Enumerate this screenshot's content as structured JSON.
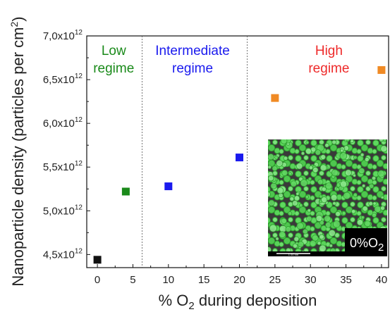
{
  "chart_data": {
    "type": "scatter",
    "xlabel_prefix": "% O",
    "xlabel_sub": "2",
    "xlabel_suffix": " during deposition",
    "ylabel": "Nanoparticle density (particles per cm",
    "ylabel_sup": "2",
    "ylabel_close": ")",
    "xlim": [
      -1.5,
      41
    ],
    "ylim": [
      4.35,
      7.0
    ],
    "xticks": [
      0,
      5,
      10,
      15,
      20,
      25,
      30,
      35,
      40
    ],
    "yticks": [
      {
        "value": 4.5,
        "mantissa": "4,5x10",
        "exp": "12"
      },
      {
        "value": 5.0,
        "mantissa": "5,0x10",
        "exp": "12"
      },
      {
        "value": 5.5,
        "mantissa": "5,5x10",
        "exp": "12"
      },
      {
        "value": 6.0,
        "mantissa": "6,0x10",
        "exp": "12"
      },
      {
        "value": 6.5,
        "mantissa": "6,5x10",
        "exp": "12"
      },
      {
        "value": 7.0,
        "mantissa": "7,0x10",
        "exp": "12"
      }
    ],
    "y_unit_multiplier": "1e12",
    "points": [
      {
        "x": 0,
        "y": 4.44,
        "color": "#111111"
      },
      {
        "x": 4,
        "y": 5.22,
        "color": "#1a8a1a"
      },
      {
        "x": 10,
        "y": 5.28,
        "color": "#1a1aee"
      },
      {
        "x": 20,
        "y": 5.61,
        "color": "#1a1aee"
      },
      {
        "x": 25,
        "y": 6.29,
        "color": "#f08a24"
      },
      {
        "x": 40,
        "y": 6.61,
        "color": "#f08a24"
      }
    ],
    "dividers_x": [
      6.3,
      21.1
    ],
    "regimes": [
      {
        "line1": "Low",
        "line2": "regime",
        "color": "#1a8a1a",
        "x": 2.3
      },
      {
        "line1": "Intermediate",
        "line2": "regime",
        "color": "#1a1aee",
        "x": 13.4
      },
      {
        "line1": "High",
        "line2": "regime",
        "color": "#ee2a2a",
        "x": 32.6
      }
    ]
  },
  "inset": {
    "label_prefix": "0%O",
    "label_sub": "2",
    "scale_text": "1 00 nm"
  }
}
